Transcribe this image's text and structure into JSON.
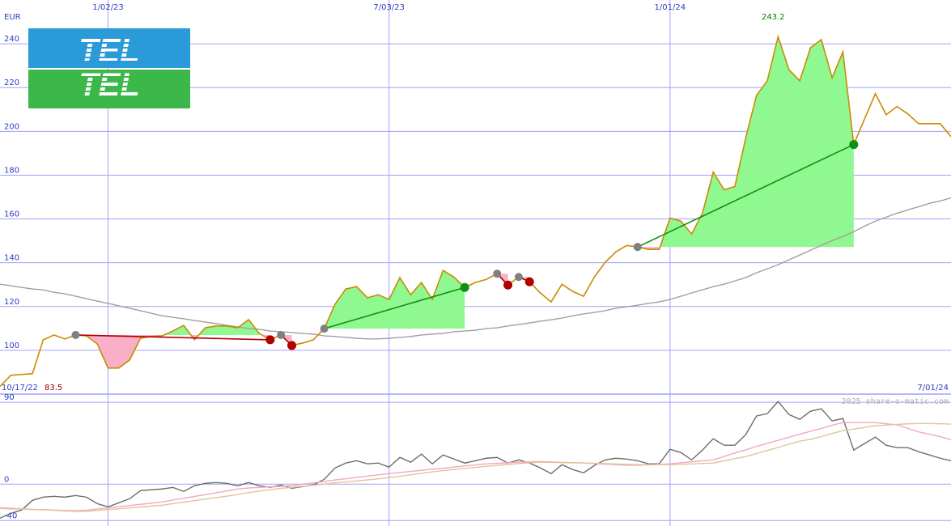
{
  "chart_data": [
    {
      "type": "line",
      "unit_label": "EUR",
      "x": [
        "10/24/22",
        "10/31/22",
        "11/07/22",
        "11/14/22",
        "11/21/22",
        "11/28/22",
        "12/05/22",
        "12/12/22",
        "12/19/22",
        "12/26/22",
        "1/02/23",
        "1/09/23",
        "1/16/23",
        "1/23/23",
        "1/30/23",
        "2/06/23",
        "2/13/23",
        "2/20/23",
        "2/27/23",
        "3/06/23",
        "3/13/23",
        "3/20/23",
        "3/27/23",
        "4/03/23",
        "4/10/23",
        "4/17/23",
        "4/24/23",
        "5/01/23",
        "5/08/23",
        "5/15/23",
        "5/22/23",
        "5/29/23",
        "6/05/23",
        "6/12/23",
        "6/19/23",
        "6/26/23",
        "7/03/23",
        "7/10/23",
        "7/17/23",
        "7/24/23",
        "7/31/23",
        "8/07/23",
        "8/14/23",
        "8/21/23",
        "8/28/23",
        "9/04/23",
        "9/11/23",
        "9/18/23",
        "9/25/23",
        "10/02/23",
        "10/09/23",
        "10/16/23",
        "10/23/23",
        "10/30/23",
        "11/06/23",
        "11/13/23",
        "11/20/23",
        "11/27/23",
        "12/04/23",
        "12/11/23",
        "12/18/23",
        "12/25/23",
        "1/01/24",
        "1/08/24",
        "1/15/24",
        "1/22/24",
        "1/29/24",
        "2/05/24",
        "2/12/24",
        "2/19/24",
        "2/26/24",
        "3/04/24",
        "3/11/24",
        "3/18/24",
        "3/25/24",
        "4/01/24",
        "4/08/24",
        "4/15/24",
        "4/22/24",
        "4/29/24",
        "5/06/24",
        "5/13/24",
        "5/20/24",
        "5/27/24",
        "6/03/24",
        "6/10/24",
        "6/17/24",
        "6/24/24",
        "7/01/24"
      ],
      "xlim": [
        "10/24/22",
        "7/01/24"
      ],
      "xticks": [
        "1/02/23",
        "7/03/23",
        "1/01/24"
      ],
      "start_label": "10/17/22",
      "ylim": [
        80,
        260
      ],
      "yticks": [
        100,
        120,
        140,
        160,
        180,
        200,
        220,
        240
      ],
      "grid": true,
      "grid_color": "#a0a0ff",
      "high": 243.2,
      "low": 83.5,
      "high_color": "#008000",
      "low_color": "#a00000",
      "series": [
        {
          "color": "#cc8a00",
          "values": [
            83.5,
            88.6,
            89.0,
            89.3,
            104.8,
            107.0,
            105.2,
            107.0,
            106.6,
            102.9,
            91.9,
            91.9,
            95.6,
            105.5,
            106.3,
            106.6,
            108.8,
            111.4,
            104.8,
            110.3,
            111.1,
            111.1,
            110.3,
            114.0,
            107.7,
            104.8,
            107.0,
            102.2,
            103.3,
            104.8,
            109.9,
            121.0,
            128.0,
            129.1,
            124.0,
            125.4,
            123.2,
            133.2,
            125.4,
            131.0,
            123.2,
            136.5,
            133.5,
            128.7,
            131.0,
            132.4,
            135.0,
            129.8,
            133.5,
            131.3,
            126.2,
            122.1,
            130.2,
            126.9,
            124.7,
            133.5,
            140.2,
            145.0,
            147.9,
            147.2,
            146.1,
            146.1,
            160.4,
            159.0,
            153.1,
            162.6,
            181.4,
            173.3,
            174.8,
            196.9,
            216.4,
            223.1,
            243.2,
            228.2,
            223.1,
            238.2,
            241.9,
            224.5,
            236.3,
            194.0,
            205.7,
            217.2,
            207.6,
            211.3,
            208.0,
            203.5,
            203.5,
            203.5,
            197.6
          ]
        },
        {
          "color": "#a0a0a0",
          "values": [
            130.2,
            129.5,
            128.7,
            128.0,
            127.6,
            126.5,
            125.8,
            124.7,
            123.6,
            122.5,
            121.4,
            120.3,
            119.2,
            118.1,
            116.9,
            115.8,
            115.1,
            114.4,
            113.6,
            112.9,
            112.2,
            111.4,
            110.7,
            109.9,
            109.6,
            108.8,
            108.5,
            108.1,
            107.7,
            107.4,
            106.6,
            106.3,
            105.9,
            105.5,
            105.2,
            105.2,
            105.5,
            105.9,
            106.3,
            107.0,
            107.4,
            107.7,
            108.5,
            108.8,
            109.2,
            109.9,
            110.3,
            111.1,
            111.8,
            112.5,
            113.3,
            114.0,
            114.7,
            115.8,
            116.6,
            117.3,
            118.1,
            119.2,
            119.9,
            120.6,
            121.4,
            122.1,
            123.2,
            124.7,
            126.2,
            127.6,
            129.1,
            130.2,
            131.7,
            133.2,
            135.4,
            137.2,
            139.1,
            141.3,
            143.5,
            145.7,
            147.9,
            150.1,
            152.0,
            154.2,
            156.7,
            159.0,
            160.8,
            162.6,
            164.1,
            165.6,
            167.1,
            168.2,
            169.6
          ]
        }
      ],
      "trades": [
        {
          "entry": "12/12/22",
          "exit": "4/17/23",
          "color": "#b00000"
        },
        {
          "entry": "4/24/23",
          "exit": "5/01/23",
          "color": "#b00000"
        },
        {
          "entry": "5/22/23",
          "exit": "8/21/23",
          "color": "#109010"
        },
        {
          "entry": "9/11/23",
          "exit": "9/18/23",
          "color": "#b00000"
        },
        {
          "entry": "9/25/23",
          "exit": "10/02/23",
          "color": "#b00000"
        },
        {
          "entry": "12/11/23",
          "exit": "4/29/24",
          "color": "#109010"
        }
      ],
      "fill_up": "#90f890",
      "fill_down": "#f8b0c8",
      "entry_marker_color": "#808080"
    },
    {
      "type": "line",
      "x": [
        "10/24/22",
        "10/31/22",
        "11/07/22",
        "11/14/22",
        "11/21/22",
        "11/28/22",
        "12/05/22",
        "12/12/22",
        "12/19/22",
        "12/26/22",
        "1/02/23",
        "1/09/23",
        "1/16/23",
        "1/23/23",
        "1/30/23",
        "2/06/23",
        "2/13/23",
        "2/20/23",
        "2/27/23",
        "3/06/23",
        "3/13/23",
        "3/20/23",
        "3/27/23",
        "4/03/23",
        "4/10/23",
        "4/17/23",
        "4/24/23",
        "5/01/23",
        "5/08/23",
        "5/15/23",
        "5/22/23",
        "5/29/23",
        "6/05/23",
        "6/12/23",
        "6/19/23",
        "6/26/23",
        "7/03/23",
        "7/10/23",
        "7/17/23",
        "7/24/23",
        "7/31/23",
        "8/07/23",
        "8/14/23",
        "8/21/23",
        "8/28/23",
        "9/04/23",
        "9/11/23",
        "9/18/23",
        "9/25/23",
        "10/02/23",
        "10/09/23",
        "10/16/23",
        "10/23/23",
        "10/30/23",
        "11/06/23",
        "11/13/23",
        "11/20/23",
        "11/27/23",
        "12/04/23",
        "12/11/23",
        "12/18/23",
        "12/25/23",
        "1/01/24",
        "1/08/24",
        "1/15/24",
        "1/22/24",
        "1/29/24",
        "2/05/24",
        "2/12/24",
        "2/19/24",
        "2/26/24",
        "3/04/24",
        "3/11/24",
        "3/18/24",
        "3/25/24",
        "4/01/24",
        "4/08/24",
        "4/15/24",
        "4/22/24",
        "4/29/24",
        "5/06/24",
        "5/13/24",
        "5/20/24",
        "5/27/24",
        "6/03/24",
        "6/10/24",
        "6/17/24",
        "6/24/24",
        "7/01/24"
      ],
      "xlim": [
        "10/24/22",
        "7/01/24"
      ],
      "end_label": "7/01/24",
      "ylim": [
        -46,
        99
      ],
      "yticks": [
        -40,
        0,
        90
      ],
      "grid": true,
      "grid_color": "#a0a0ff",
      "watermark": "2025 share-o-matic.com",
      "series": [
        {
          "color": "#e2c595",
          "values": [
            -25.8,
            -26.4,
            -27.0,
            -27.6,
            -28.2,
            -28.8,
            -29.4,
            -30.0,
            -29.8,
            -28.9,
            -27.9,
            -27.0,
            -26.0,
            -25.1,
            -24.1,
            -23.2,
            -21.4,
            -19.8,
            -18.1,
            -16.4,
            -14.8,
            -13.2,
            -11.4,
            -9.3,
            -7.7,
            -6.1,
            -4.6,
            -3.6,
            -2.3,
            -1.2,
            0.1,
            1.5,
            2.4,
            3.5,
            4.7,
            5.9,
            7.2,
            8.7,
            10.3,
            11.9,
            13.5,
            14.9,
            16.1,
            17.3,
            18.4,
            19.6,
            20.6,
            21.6,
            22.6,
            23.6,
            24.1,
            23.9,
            23.7,
            23.5,
            23.3,
            23.0,
            22.6,
            22.2,
            21.8,
            21.4,
            21.4,
            21.4,
            21.4,
            21.8,
            22.2,
            22.8,
            23.2,
            25.5,
            28.0,
            30.3,
            33.6,
            37.0,
            40.4,
            43.9,
            47.2,
            49.3,
            52.3,
            55.7,
            58.8,
            60.5,
            62.4,
            64.2,
            64.9,
            65.7,
            66.3,
            66.7,
            66.7,
            66.4,
            66.0
          ]
        },
        {
          "color": "#f4a6c4",
          "values": [
            -26.7,
            -27.1,
            -27.4,
            -27.8,
            -28.1,
            -28.5,
            -28.8,
            -29.2,
            -28.7,
            -27.4,
            -26.1,
            -24.8,
            -23.5,
            -22.2,
            -20.9,
            -19.6,
            -17.5,
            -15.5,
            -13.5,
            -11.5,
            -9.5,
            -7.5,
            -5.4,
            -4.2,
            -3.6,
            -3.0,
            -2.4,
            -1.8,
            -0.1,
            1.4,
            2.9,
            4.6,
            6.0,
            7.4,
            8.9,
            10.2,
            11.7,
            12.8,
            14.0,
            15.2,
            16.4,
            17.5,
            18.8,
            20.0,
            21.1,
            22.3,
            22.9,
            23.5,
            24.1,
            24.7,
            24.8,
            24.4,
            24.0,
            23.6,
            23.2,
            22.6,
            22.0,
            21.4,
            20.8,
            20.8,
            21.3,
            21.8,
            22.3,
            23.4,
            24.5,
            25.7,
            26.7,
            30.5,
            34.2,
            37.7,
            41.5,
            44.8,
            48.1,
            51.6,
            54.9,
            58.1,
            61.3,
            64.8,
            67.7,
            67.7,
            67.7,
            67.6,
            66.4,
            65.3,
            61.4,
            57.5,
            54.9,
            52.2,
            49.0
          ]
        },
        {
          "color": "#6e6e6e",
          "values": [
            -37.4,
            -32.1,
            -28.5,
            -17.8,
            -14.3,
            -13.4,
            -14.3,
            -12.5,
            -14.3,
            -21.4,
            -25.0,
            -20.5,
            -16.0,
            -7.1,
            -6.2,
            -5.3,
            -3.6,
            -8.0,
            -1.8,
            0.9,
            1.8,
            0.9,
            -1.8,
            1.8,
            -1.8,
            -3.6,
            -0.9,
            -4.5,
            -2.7,
            -0.9,
            5.3,
            17.8,
            23.2,
            25.8,
            22.3,
            23.2,
            18.7,
            29.4,
            24.1,
            33.0,
            22.3,
            32.1,
            27.6,
            23.2,
            25.8,
            28.5,
            29.4,
            23.2,
            26.7,
            23.2,
            17.8,
            11.6,
            21.4,
            16.0,
            12.5,
            20.5,
            26.7,
            28.5,
            27.6,
            25.8,
            22.3,
            22.3,
            38.3,
            34.8,
            26.7,
            37.4,
            49.9,
            42.8,
            42.8,
            54.4,
            74.9,
            77.5,
            90.9,
            76.6,
            71.3,
            80.2,
            82.9,
            69.5,
            72.2,
            37.4,
            44.6,
            51.7,
            42.8,
            40.1,
            40.1,
            35.7,
            32.1,
            28.5,
            25.8
          ]
        }
      ]
    }
  ],
  "logo": {
    "text": "TEL"
  }
}
